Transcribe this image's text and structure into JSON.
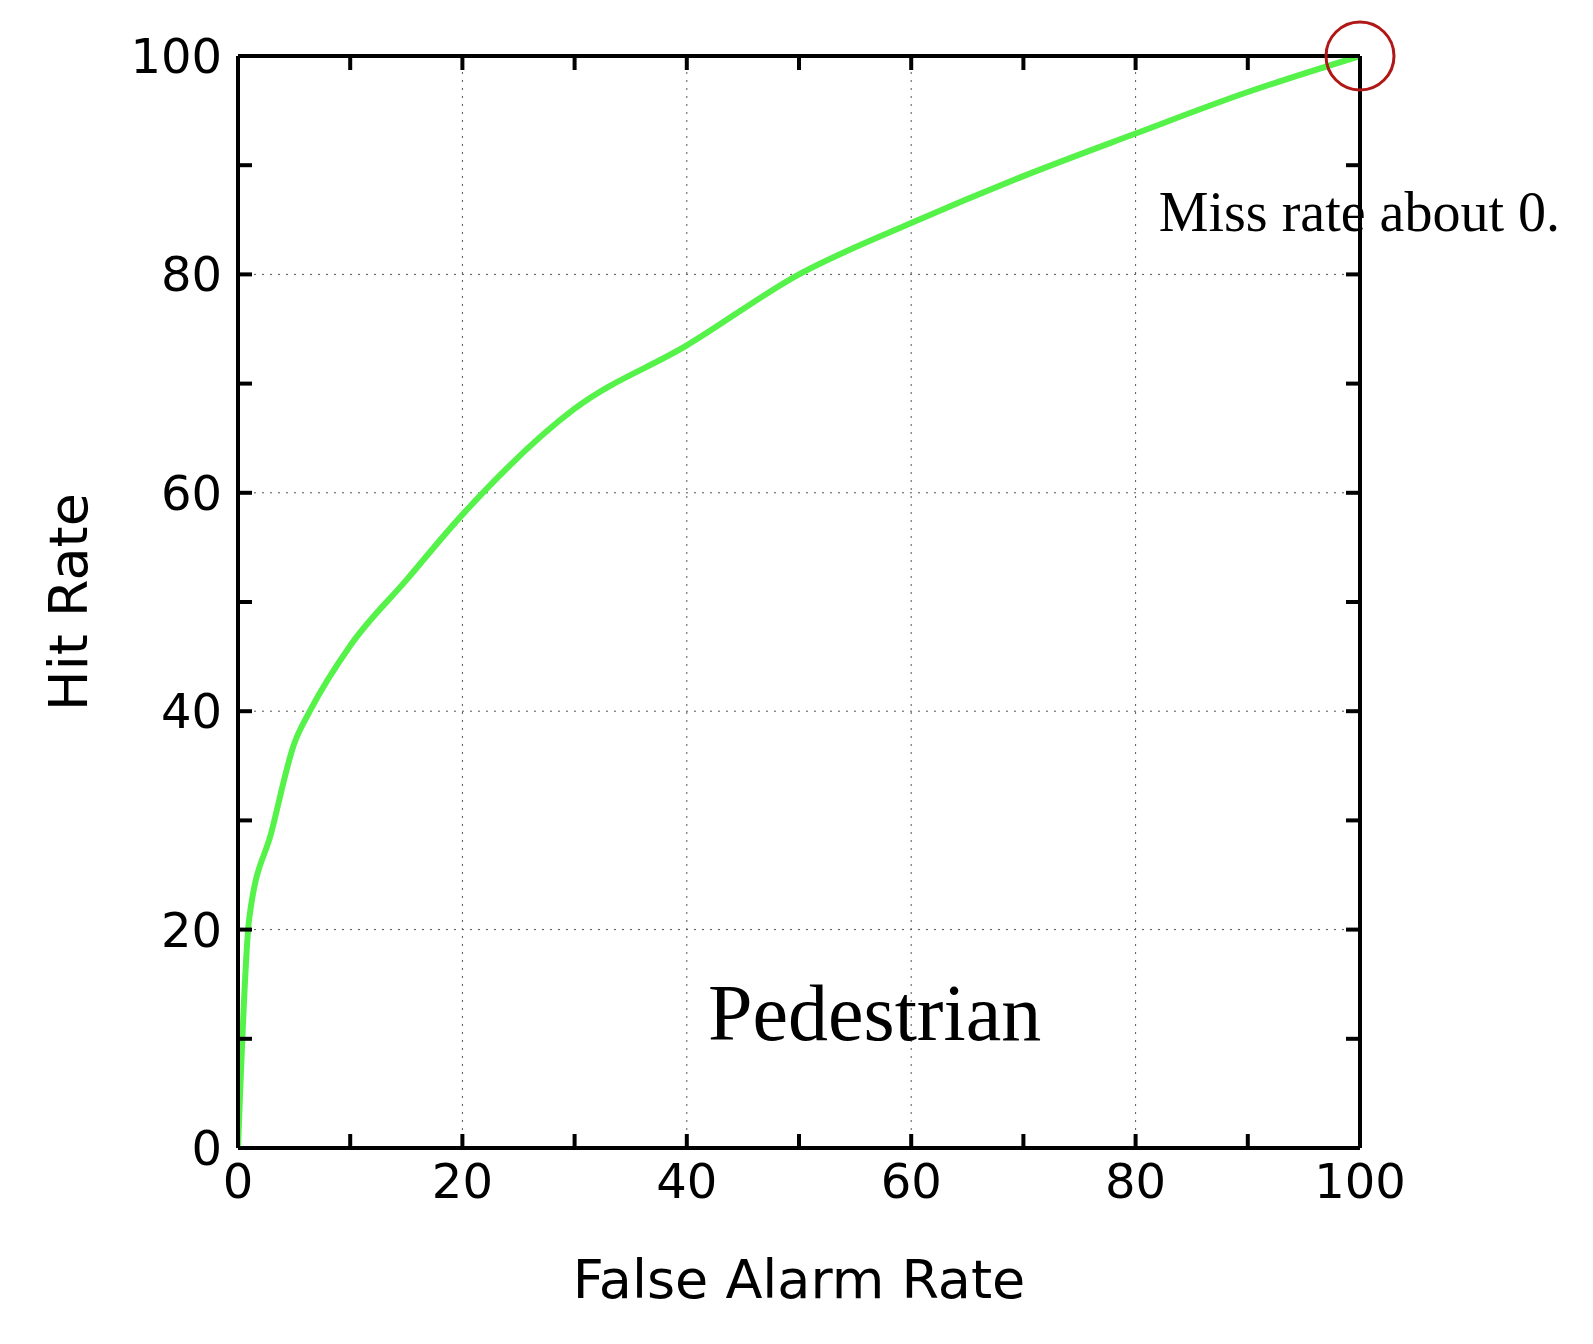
{
  "chart_data": {
    "type": "line",
    "xlabel": "False Alarm Rate",
    "ylabel": "Hit Rate",
    "x": [
      0,
      1,
      3,
      5,
      6.4,
      10,
      15,
      20,
      30,
      40,
      50,
      60,
      70,
      80,
      90,
      100
    ],
    "series": [
      {
        "color": "#55f24a",
        "values": [
          0,
          21,
          29,
          37,
          40,
          46,
          52,
          58,
          67.7,
          73.5,
          80,
          84.7,
          89,
          92.9,
          96.7,
          100
        ]
      }
    ],
    "xlim": [
      0,
      100
    ],
    "ylim": [
      0,
      100
    ],
    "xticks": [
      0,
      {
        "value": 10,
        "label": null
      },
      20,
      {
        "value": 30,
        "label": null
      },
      40,
      {
        "value": 50,
        "label": null
      },
      60,
      {
        "value": 70,
        "label": null
      },
      80,
      {
        "value": 90,
        "label": null
      },
      100
    ],
    "yticks": [
      0,
      {
        "value": 10,
        "label": null
      },
      20,
      {
        "value": 30,
        "label": null
      },
      40,
      {
        "value": 50,
        "label": null
      },
      60,
      {
        "value": 70,
        "label": null
      },
      80,
      {
        "value": 90,
        "label": null
      },
      100
    ],
    "grid": true,
    "marker": "none",
    "line_style": "solid",
    "legend": false,
    "annotations": [
      {
        "text": "Miss rate about 0.",
        "x": 100,
        "y": 100
      },
      "Pedestrian"
    ]
  }
}
